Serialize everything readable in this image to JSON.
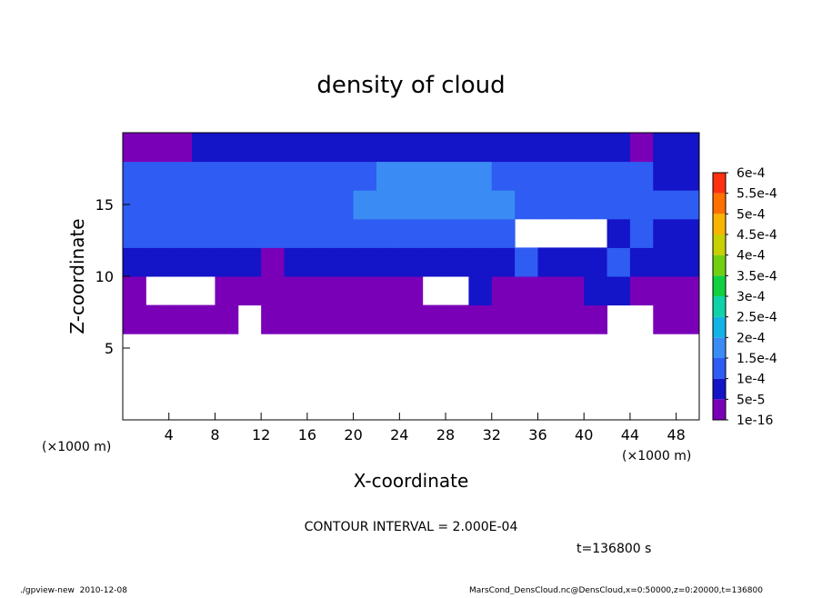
{
  "chart_data": {
    "type": "contour",
    "title": "density of cloud",
    "x_label": "X-coordinate",
    "y_label": "Z-coordinate",
    "x_unit": "(×1000 m)",
    "y_unit": "(×1000 m)",
    "annotation": "CONTOUR INTERVAL = 2.000E-04",
    "time_label": "t=136800 s",
    "footer_left": "./gpview-new  2010-12-08",
    "footer_right": "MarsCond_DensCloud.nc@DensCloud,x=0:50000,z=0:20000,t=136800",
    "xlim": [
      0,
      50
    ],
    "ylim": [
      0,
      20
    ],
    "xticks": [
      4,
      8,
      12,
      16,
      20,
      24,
      28,
      32,
      36,
      40,
      44,
      48
    ],
    "yticks": [
      5,
      10,
      15
    ],
    "x": [
      1,
      3,
      5,
      7,
      9,
      11,
      13,
      15,
      17,
      19,
      21,
      23,
      25,
      27,
      29,
      31,
      33,
      35,
      37,
      39,
      41,
      43,
      45,
      47,
      49
    ],
    "y": [
      1,
      3,
      5,
      7,
      9,
      11,
      13,
      15,
      17,
      19
    ],
    "z": [
      [
        null,
        null,
        null,
        null,
        null,
        null,
        null,
        null,
        null,
        null,
        null,
        null,
        null,
        null,
        null,
        null,
        null,
        null,
        null,
        null,
        null,
        null,
        null,
        null,
        null
      ],
      [
        null,
        null,
        null,
        null,
        null,
        null,
        null,
        null,
        null,
        null,
        null,
        null,
        null,
        null,
        null,
        null,
        null,
        null,
        null,
        null,
        null,
        null,
        null,
        null,
        null
      ],
      [
        null,
        null,
        null,
        null,
        null,
        null,
        null,
        null,
        null,
        null,
        null,
        null,
        null,
        null,
        null,
        null,
        null,
        null,
        null,
        null,
        null,
        null,
        null,
        null,
        null
      ],
      [
        2e-05,
        2e-05,
        2e-05,
        2e-05,
        2e-05,
        null,
        2e-05,
        2e-05,
        2e-05,
        2e-05,
        2e-05,
        2e-05,
        2e-05,
        2e-05,
        2e-05,
        2e-05,
        2e-05,
        2e-05,
        2e-05,
        2e-05,
        2e-05,
        null,
        null,
        2e-05,
        2e-05
      ],
      [
        2e-05,
        null,
        null,
        null,
        2e-05,
        2e-05,
        2e-05,
        2e-05,
        2e-05,
        2e-05,
        2e-05,
        2e-05,
        2e-05,
        null,
        null,
        7e-05,
        2e-05,
        2e-05,
        2e-05,
        2e-05,
        7e-05,
        7e-05,
        2e-05,
        2e-05,
        2e-05
      ],
      [
        7e-05,
        7e-05,
        7e-05,
        7e-05,
        7e-05,
        7e-05,
        2e-05,
        7e-05,
        7e-05,
        7e-05,
        7e-05,
        7e-05,
        7e-05,
        7e-05,
        7e-05,
        7e-05,
        7e-05,
        0.00012,
        7e-05,
        7e-05,
        7e-05,
        0.00012,
        7e-05,
        7e-05,
        7e-05
      ],
      [
        0.00012,
        0.00012,
        0.00012,
        0.00012,
        0.00012,
        0.00012,
        0.00012,
        0.00012,
        0.00012,
        0.00012,
        0.00012,
        0.00012,
        0.00012,
        0.00012,
        0.00012,
        0.00012,
        0.00012,
        null,
        null,
        null,
        null,
        7e-05,
        0.00012,
        7e-05,
        7e-05
      ],
      [
        0.00012,
        0.00012,
        0.00012,
        0.00012,
        0.00012,
        0.00012,
        0.00012,
        0.00012,
        0.00012,
        0.00012,
        0.00017,
        0.00017,
        0.00017,
        0.00017,
        0.00017,
        0.00017,
        0.00017,
        0.00012,
        0.00012,
        0.00012,
        0.00012,
        0.00012,
        0.00012,
        0.00012,
        0.00012
      ],
      [
        0.00012,
        0.00012,
        0.00012,
        0.00012,
        0.00012,
        0.00012,
        0.00012,
        0.00012,
        0.00012,
        0.00012,
        0.00012,
        0.00017,
        0.00017,
        0.00017,
        0.00017,
        0.00017,
        0.00012,
        0.00012,
        0.00012,
        0.00012,
        0.00012,
        0.00012,
        0.00012,
        7e-05,
        7e-05
      ],
      [
        2e-05,
        2e-05,
        2e-05,
        7e-05,
        7e-05,
        7e-05,
        7e-05,
        7e-05,
        7e-05,
        7e-05,
        7e-05,
        7e-05,
        7e-05,
        7e-05,
        7e-05,
        7e-05,
        7e-05,
        7e-05,
        7e-05,
        7e-05,
        7e-05,
        7e-05,
        2e-05,
        7e-05,
        7e-05
      ]
    ],
    "levels": [
      {
        "value": 1e-16,
        "label": "1e-16"
      },
      {
        "value": 5e-05,
        "label": "5e-5"
      },
      {
        "value": 0.0001,
        "label": "1e-4"
      },
      {
        "value": 0.00015,
        "label": "1.5e-4"
      },
      {
        "value": 0.0002,
        "label": "2e-4"
      },
      {
        "value": 0.00025,
        "label": "2.5e-4"
      },
      {
        "value": 0.0003,
        "label": "3e-4"
      },
      {
        "value": 0.00035,
        "label": "3.5e-4"
      },
      {
        "value": 0.0004,
        "label": "4e-4"
      },
      {
        "value": 0.00045,
        "label": "4.5e-4"
      },
      {
        "value": 0.0005,
        "label": "5e-4"
      },
      {
        "value": 0.00055,
        "label": "5.5e-4"
      },
      {
        "value": 0.0006,
        "label": "6e-4"
      }
    ],
    "colors": [
      "#7a00b8",
      "#1414c8",
      "#2f5cf2",
      "#3a8cf4",
      "#12b4e6",
      "#10d2a8",
      "#10d040",
      "#70d010",
      "#c8d000",
      "#f8b400",
      "#ff7000",
      "#ff3010",
      "#ff8c8c"
    ]
  }
}
